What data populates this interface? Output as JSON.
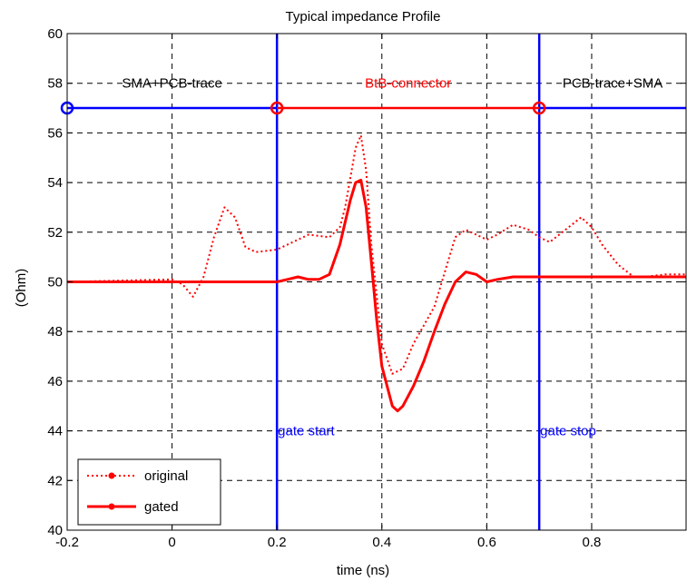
{
  "chart_data": {
    "type": "line",
    "title": "Typical impedance Profile",
    "xlabel": "time (ns)",
    "ylabel": "(Ohm)",
    "xlim": [
      -0.2,
      0.98
    ],
    "ylim": [
      40,
      60
    ],
    "xticks": [
      -0.2,
      0,
      0.2,
      0.4,
      0.6,
      0.8
    ],
    "xtick_labels": [
      "-0.2",
      "0",
      "0.2",
      "0.4",
      "0.6",
      "0.8"
    ],
    "yticks": [
      40,
      42,
      44,
      46,
      48,
      50,
      52,
      54,
      56,
      58,
      60
    ],
    "ytick_labels": [
      "40",
      "42",
      "44",
      "46",
      "48",
      "50",
      "52",
      "54",
      "56",
      "58",
      "60"
    ],
    "grid": true,
    "legend": {
      "placement": "bottom-left",
      "entries": [
        "original",
        "gated"
      ]
    },
    "colors": {
      "data": "#ff0000",
      "gate": "#0000ff",
      "text": "#000000",
      "grid": "#000000"
    },
    "series": [
      {
        "name": "original",
        "style": "dotted",
        "x": [
          -0.2,
          0.0,
          0.02,
          0.04,
          0.06,
          0.08,
          0.1,
          0.12,
          0.14,
          0.16,
          0.2,
          0.22,
          0.24,
          0.26,
          0.3,
          0.32,
          0.33,
          0.34,
          0.35,
          0.36,
          0.37,
          0.38,
          0.4,
          0.42,
          0.44,
          0.46,
          0.5,
          0.54,
          0.56,
          0.58,
          0.6,
          0.62,
          0.65,
          0.68,
          0.7,
          0.72,
          0.75,
          0.78,
          0.8,
          0.82,
          0.85,
          0.88,
          0.9,
          0.94,
          0.98
        ],
        "y": [
          50.0,
          50.1,
          49.9,
          49.4,
          50.2,
          51.8,
          53.0,
          52.6,
          51.4,
          51.2,
          51.3,
          51.5,
          51.7,
          51.9,
          51.8,
          52.2,
          53.0,
          54.2,
          55.4,
          55.9,
          54.5,
          51.5,
          47.5,
          46.3,
          46.5,
          47.5,
          49.0,
          51.8,
          52.1,
          51.9,
          51.7,
          51.9,
          52.3,
          52.1,
          51.8,
          51.6,
          52.1,
          52.6,
          52.2,
          51.5,
          50.7,
          50.2,
          50.2,
          50.3,
          50.3
        ]
      },
      {
        "name": "gated",
        "style": "solid",
        "x": [
          -0.2,
          0.0,
          0.2,
          0.22,
          0.24,
          0.26,
          0.28,
          0.3,
          0.32,
          0.33,
          0.34,
          0.35,
          0.36,
          0.37,
          0.38,
          0.39,
          0.4,
          0.42,
          0.43,
          0.44,
          0.46,
          0.48,
          0.5,
          0.52,
          0.54,
          0.56,
          0.58,
          0.6,
          0.62,
          0.65,
          0.7,
          0.8,
          0.9,
          0.98
        ],
        "y": [
          50.0,
          50.0,
          50.0,
          50.1,
          50.2,
          50.1,
          50.1,
          50.3,
          51.5,
          52.4,
          53.3,
          54.0,
          54.1,
          53.0,
          50.8,
          48.5,
          46.6,
          45.0,
          44.8,
          45.0,
          45.8,
          46.8,
          48.0,
          49.1,
          50.0,
          50.4,
          50.3,
          50.0,
          50.1,
          50.2,
          50.2,
          50.2,
          50.2,
          50.2
        ]
      }
    ],
    "gates": [
      {
        "x": 0.2,
        "label": "gate start",
        "label_y": 44.0
      },
      {
        "x": 0.7,
        "label": "gate stop",
        "label_y": 44.0
      }
    ],
    "segment_line": {
      "y": 57.0,
      "blue_left": [
        -0.2,
        0.2
      ],
      "red_mid": [
        0.2,
        0.7
      ],
      "blue_right": [
        0.7,
        0.98
      ],
      "markers_x": [
        -0.2,
        0.2,
        0.7
      ]
    },
    "region_labels": [
      {
        "text": "SMA+PCB-trace",
        "x": 0.0,
        "y": 58.0,
        "color": "#000000"
      },
      {
        "text": "BtB-connector",
        "x": 0.45,
        "y": 58.0,
        "color": "#ff0000"
      },
      {
        "text": "PCB-trace+SMA",
        "x": 0.84,
        "y": 58.0,
        "color": "#000000"
      }
    ]
  }
}
